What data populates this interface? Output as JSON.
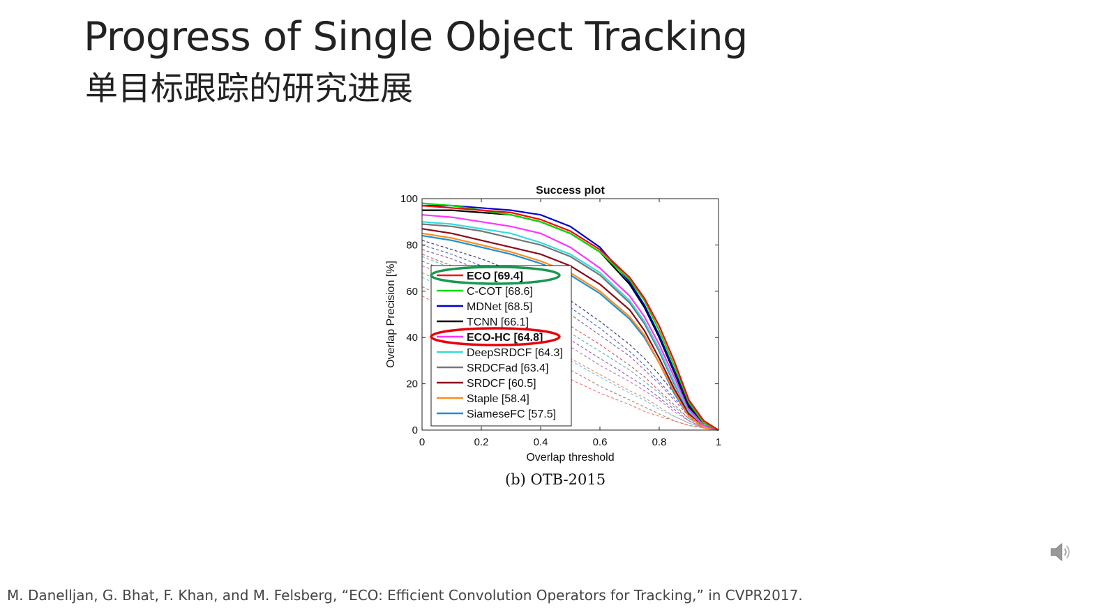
{
  "slide": {
    "title": "Progress of Single Object Tracking",
    "subtitle": "单目标跟踪的研究进展",
    "caption": "(b) OTB-2015",
    "reference": "M. Danelljan, G. Bhat, F. Khan, and M. Felsberg, “ECO: Efficient Convolution Operators for Tracking,” in CVPR2017."
  },
  "icons": {
    "speaker": "speaker-icon"
  },
  "chart_data": {
    "type": "line",
    "title": "Success plot",
    "xlabel": "Overlap threshold",
    "ylabel": "Overlap Precision [%]",
    "xlim": [
      0,
      1
    ],
    "ylim": [
      0,
      100
    ],
    "xticks": [
      "0",
      "0.2",
      "0.4",
      "0.6",
      "0.8",
      "1"
    ],
    "yticks": [
      "0",
      "20",
      "40",
      "60",
      "80",
      "100"
    ],
    "legend_position": "lower-left",
    "x": [
      0,
      0.1,
      0.2,
      0.3,
      0.4,
      0.5,
      0.6,
      0.7,
      0.75,
      0.8,
      0.85,
      0.9,
      0.95,
      1.0
    ],
    "series": [
      {
        "name": "ECO [69.4]",
        "color": "#ff0000",
        "bold": true,
        "highlight": "#1a9850",
        "values": [
          97,
          96,
          95,
          94,
          91,
          86,
          78,
          66,
          57,
          45,
          30,
          13,
          4,
          0
        ]
      },
      {
        "name": "C-COT [68.6]",
        "color": "#00dd00",
        "values": [
          98,
          97,
          95,
          93,
          90,
          85,
          77,
          65,
          56,
          43,
          28,
          12,
          3,
          0
        ]
      },
      {
        "name": "MDNet [68.5]",
        "color": "#0000cc",
        "values": [
          97,
          97,
          96,
          95,
          93,
          88,
          79,
          64,
          54,
          41,
          26,
          11,
          3,
          0
        ]
      },
      {
        "name": "TCNN [66.1]",
        "color": "#000000",
        "values": [
          95,
          95,
          94,
          93,
          90,
          85,
          77,
          63,
          53,
          40,
          25,
          10,
          3,
          0
        ]
      },
      {
        "name": "ECO-HC [64.8]",
        "color": "#ff33ff",
        "bold": true,
        "highlight": "#e8000b",
        "values": [
          93,
          92,
          90,
          88,
          85,
          79,
          70,
          58,
          49,
          37,
          23,
          9,
          2,
          0
        ]
      },
      {
        "name": "DeepSRDCF [64.3]",
        "color": "#33dddd",
        "values": [
          90,
          89,
          87,
          85,
          81,
          76,
          68,
          56,
          47,
          35,
          21,
          8,
          2,
          0
        ]
      },
      {
        "name": "SRDCFad [63.4]",
        "color": "#777777",
        "values": [
          89,
          88,
          86,
          83,
          80,
          75,
          67,
          55,
          46,
          34,
          20,
          8,
          2,
          0
        ]
      },
      {
        "name": "SRDCF [60.5]",
        "color": "#8b0a1a",
        "values": [
          87,
          85,
          82,
          79,
          76,
          71,
          63,
          52,
          43,
          31,
          18,
          7,
          2,
          0
        ]
      },
      {
        "name": "Staple [58.4]",
        "color": "#ff8c1a",
        "values": [
          85,
          83,
          80,
          77,
          73,
          68,
          60,
          49,
          41,
          29,
          17,
          6,
          1,
          0
        ]
      },
      {
        "name": "SiameseFC [57.5]",
        "color": "#1a90d9",
        "values": [
          84,
          82,
          79,
          76,
          72,
          67,
          59,
          48,
          40,
          29,
          16,
          6,
          1,
          0
        ]
      }
    ],
    "other_series_dashed": [
      {
        "color": "#1a1a5e",
        "values": [
          82,
          78,
          74,
          69,
          63,
          56,
          47,
          37,
          31,
          24,
          16,
          8,
          3,
          0
        ]
      },
      {
        "color": "#3355cc",
        "values": [
          80,
          76,
          71,
          66,
          60,
          53,
          44,
          34,
          28,
          21,
          14,
          7,
          2,
          0
        ]
      },
      {
        "color": "#884488",
        "values": [
          78,
          74,
          69,
          63,
          57,
          50,
          41,
          32,
          26,
          20,
          13,
          6,
          2,
          0
        ]
      },
      {
        "color": "#cc4444",
        "values": [
          76,
          71,
          66,
          60,
          53,
          45,
          37,
          28,
          23,
          17,
          11,
          5,
          2,
          0
        ]
      },
      {
        "color": "#44aaaa",
        "values": [
          75,
          70,
          64,
          57,
          50,
          42,
          34,
          26,
          21,
          16,
          10,
          5,
          1,
          0
        ]
      },
      {
        "color": "#8844cc",
        "values": [
          73,
          68,
          62,
          55,
          47,
          39,
          31,
          23,
          19,
          14,
          9,
          4,
          1,
          0
        ]
      },
      {
        "color": "#bb66aa",
        "values": [
          71,
          66,
          59,
          52,
          44,
          36,
          28,
          21,
          17,
          13,
          8,
          4,
          1,
          0
        ]
      },
      {
        "color": "#dd8866",
        "values": [
          68,
          62,
          55,
          47,
          39,
          31,
          24,
          17,
          14,
          10,
          6,
          3,
          1,
          0
        ]
      },
      {
        "color": "#66bbdd",
        "values": [
          66,
          60,
          53,
          46,
          38,
          30,
          23,
          16,
          13,
          9,
          6,
          3,
          1,
          0
        ]
      },
      {
        "color": "#aa7744",
        "values": [
          62,
          56,
          48,
          41,
          33,
          26,
          19,
          13,
          10,
          7,
          4,
          2,
          1,
          0
        ]
      },
      {
        "color": "#ee6666",
        "values": [
          58,
          51,
          44,
          36,
          29,
          22,
          16,
          11,
          8,
          6,
          4,
          2,
          1,
          0
        ]
      }
    ]
  }
}
